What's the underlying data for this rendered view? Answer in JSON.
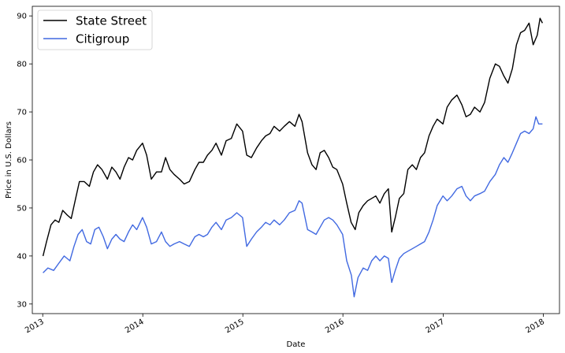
{
  "chart_data": {
    "type": "line",
    "xlabel": "Date",
    "ylabel": "Price in U.S. Dollars",
    "xlim": [
      "2012-11-24",
      "2018-03-01"
    ],
    "ylim": [
      28,
      92
    ],
    "x_ticks": [
      {
        "date": "2013-01-01",
        "label": "2013"
      },
      {
        "date": "2014-01-01",
        "label": "2014"
      },
      {
        "date": "2015-01-01",
        "label": "2015"
      },
      {
        "date": "2016-01-01",
        "label": "2016"
      },
      {
        "date": "2017-01-01",
        "label": "2017"
      },
      {
        "date": "2018-01-01",
        "label": "2018"
      }
    ],
    "y_ticks": [
      30,
      40,
      50,
      60,
      70,
      80,
      90
    ],
    "grid": false,
    "legend_position": "top-left",
    "series": [
      {
        "name": "State Street",
        "color": "#000000",
        "points": [
          [
            "2013-01-02",
            40.0
          ],
          [
            "2013-01-15",
            43.0
          ],
          [
            "2013-01-31",
            46.5
          ],
          [
            "2013-02-15",
            47.5
          ],
          [
            "2013-03-01",
            47.0
          ],
          [
            "2013-03-15",
            49.5
          ],
          [
            "2013-04-01",
            48.5
          ],
          [
            "2013-04-15",
            47.8
          ],
          [
            "2013-05-01",
            52.0
          ],
          [
            "2013-05-15",
            55.5
          ],
          [
            "2013-06-01",
            55.5
          ],
          [
            "2013-06-20",
            54.5
          ],
          [
            "2013-07-05",
            57.5
          ],
          [
            "2013-07-20",
            59.0
          ],
          [
            "2013-08-05",
            58.0
          ],
          [
            "2013-08-25",
            56.0
          ],
          [
            "2013-09-10",
            58.5
          ],
          [
            "2013-09-25",
            57.5
          ],
          [
            "2013-10-10",
            56.0
          ],
          [
            "2013-10-25",
            58.5
          ],
          [
            "2013-11-10",
            60.5
          ],
          [
            "2013-11-25",
            60.0
          ],
          [
            "2013-12-10",
            62.0
          ],
          [
            "2013-12-31",
            63.5
          ],
          [
            "2014-01-15",
            61.0
          ],
          [
            "2014-02-01",
            56.0
          ],
          [
            "2014-02-20",
            57.5
          ],
          [
            "2014-03-10",
            57.5
          ],
          [
            "2014-03-25",
            60.5
          ],
          [
            "2014-04-10",
            58.0
          ],
          [
            "2014-04-25",
            57.0
          ],
          [
            "2014-05-15",
            56.0
          ],
          [
            "2014-06-01",
            55.0
          ],
          [
            "2014-06-20",
            55.5
          ],
          [
            "2014-07-10",
            58.0
          ],
          [
            "2014-07-25",
            59.5
          ],
          [
            "2014-08-10",
            59.5
          ],
          [
            "2014-08-25",
            61.0
          ],
          [
            "2014-09-10",
            62.0
          ],
          [
            "2014-09-25",
            63.5
          ],
          [
            "2014-10-15",
            61.0
          ],
          [
            "2014-11-01",
            64.0
          ],
          [
            "2014-11-20",
            64.5
          ],
          [
            "2014-12-10",
            67.5
          ],
          [
            "2014-12-31",
            66.0
          ],
          [
            "2015-01-15",
            61.0
          ],
          [
            "2015-02-01",
            60.5
          ],
          [
            "2015-02-20",
            62.5
          ],
          [
            "2015-03-10",
            64.0
          ],
          [
            "2015-03-25",
            65.0
          ],
          [
            "2015-04-10",
            65.5
          ],
          [
            "2015-04-25",
            67.0
          ],
          [
            "2015-05-15",
            66.0
          ],
          [
            "2015-06-01",
            67.0
          ],
          [
            "2015-06-20",
            68.0
          ],
          [
            "2015-07-10",
            67.0
          ],
          [
            "2015-07-25",
            69.5
          ],
          [
            "2015-08-05",
            68.0
          ],
          [
            "2015-08-25",
            61.5
          ],
          [
            "2015-09-10",
            59.0
          ],
          [
            "2015-09-25",
            58.0
          ],
          [
            "2015-10-10",
            61.5
          ],
          [
            "2015-10-25",
            62.0
          ],
          [
            "2015-11-10",
            60.5
          ],
          [
            "2015-11-25",
            58.5
          ],
          [
            "2015-12-10",
            58.0
          ],
          [
            "2015-12-31",
            55.0
          ],
          [
            "2016-01-15",
            51.0
          ],
          [
            "2016-01-31",
            47.0
          ],
          [
            "2016-02-15",
            45.5
          ],
          [
            "2016-02-28",
            49.0
          ],
          [
            "2016-03-15",
            50.5
          ],
          [
            "2016-03-31",
            51.5
          ],
          [
            "2016-04-15",
            52.0
          ],
          [
            "2016-04-30",
            52.5
          ],
          [
            "2016-05-15",
            51.0
          ],
          [
            "2016-05-31",
            53.0
          ],
          [
            "2016-06-15",
            54.0
          ],
          [
            "2016-06-27",
            45.0
          ],
          [
            "2016-07-10",
            48.0
          ],
          [
            "2016-07-25",
            52.0
          ],
          [
            "2016-08-10",
            53.0
          ],
          [
            "2016-08-25",
            58.0
          ],
          [
            "2016-09-10",
            59.0
          ],
          [
            "2016-09-25",
            58.0
          ],
          [
            "2016-10-10",
            60.5
          ],
          [
            "2016-10-25",
            61.5
          ],
          [
            "2016-11-10",
            65.0
          ],
          [
            "2016-11-25",
            67.0
          ],
          [
            "2016-12-10",
            68.5
          ],
          [
            "2016-12-31",
            67.5
          ],
          [
            "2017-01-15",
            71.0
          ],
          [
            "2017-02-01",
            72.5
          ],
          [
            "2017-02-20",
            73.5
          ],
          [
            "2017-03-10",
            71.5
          ],
          [
            "2017-03-25",
            69.0
          ],
          [
            "2017-04-10",
            69.5
          ],
          [
            "2017-04-25",
            71.0
          ],
          [
            "2017-05-15",
            70.0
          ],
          [
            "2017-06-01",
            72.0
          ],
          [
            "2017-06-20",
            77.0
          ],
          [
            "2017-07-10",
            80.0
          ],
          [
            "2017-07-25",
            79.5
          ],
          [
            "2017-08-10",
            77.5
          ],
          [
            "2017-08-25",
            76.0
          ],
          [
            "2017-09-10",
            79.0
          ],
          [
            "2017-09-25",
            84.0
          ],
          [
            "2017-10-10",
            86.5
          ],
          [
            "2017-10-25",
            87.0
          ],
          [
            "2017-11-10",
            88.5
          ],
          [
            "2017-11-25",
            84.0
          ],
          [
            "2017-12-10",
            86.0
          ],
          [
            "2017-12-20",
            89.5
          ],
          [
            "2017-12-29",
            88.5
          ]
        ]
      },
      {
        "name": "Citigroup",
        "color": "#4169e1",
        "points": [
          [
            "2013-01-02",
            36.5
          ],
          [
            "2013-01-20",
            37.5
          ],
          [
            "2013-02-10",
            37.0
          ],
          [
            "2013-03-01",
            38.5
          ],
          [
            "2013-03-20",
            40.0
          ],
          [
            "2013-04-10",
            39.0
          ],
          [
            "2013-04-25",
            42.0
          ],
          [
            "2013-05-10",
            44.5
          ],
          [
            "2013-05-25",
            45.5
          ],
          [
            "2013-06-10",
            43.0
          ],
          [
            "2013-06-25",
            42.5
          ],
          [
            "2013-07-10",
            45.5
          ],
          [
            "2013-07-25",
            46.0
          ],
          [
            "2013-08-10",
            44.0
          ],
          [
            "2013-08-25",
            41.5
          ],
          [
            "2013-09-10",
            43.5
          ],
          [
            "2013-09-25",
            44.5
          ],
          [
            "2013-10-10",
            43.5
          ],
          [
            "2013-10-25",
            43.0
          ],
          [
            "2013-11-10",
            45.0
          ],
          [
            "2013-11-25",
            46.5
          ],
          [
            "2013-12-10",
            45.5
          ],
          [
            "2013-12-31",
            48.0
          ],
          [
            "2014-01-15",
            46.0
          ],
          [
            "2014-02-01",
            42.5
          ],
          [
            "2014-02-20",
            43.0
          ],
          [
            "2014-03-10",
            45.0
          ],
          [
            "2014-03-25",
            43.0
          ],
          [
            "2014-04-10",
            42.0
          ],
          [
            "2014-04-25",
            42.5
          ],
          [
            "2014-05-15",
            43.0
          ],
          [
            "2014-06-01",
            42.5
          ],
          [
            "2014-06-20",
            42.0
          ],
          [
            "2014-07-10",
            44.0
          ],
          [
            "2014-07-25",
            44.5
          ],
          [
            "2014-08-10",
            44.0
          ],
          [
            "2014-08-25",
            44.5
          ],
          [
            "2014-09-10",
            46.0
          ],
          [
            "2014-09-25",
            47.0
          ],
          [
            "2014-10-15",
            45.5
          ],
          [
            "2014-11-01",
            47.5
          ],
          [
            "2014-11-20",
            48.0
          ],
          [
            "2014-12-10",
            49.0
          ],
          [
            "2014-12-31",
            48.0
          ],
          [
            "2015-01-15",
            42.0
          ],
          [
            "2015-02-01",
            43.5
          ],
          [
            "2015-02-20",
            45.0
          ],
          [
            "2015-03-10",
            46.0
          ],
          [
            "2015-03-25",
            47.0
          ],
          [
            "2015-04-10",
            46.5
          ],
          [
            "2015-04-25",
            47.5
          ],
          [
            "2015-05-15",
            46.5
          ],
          [
            "2015-06-01",
            47.5
          ],
          [
            "2015-06-20",
            49.0
          ],
          [
            "2015-07-10",
            49.5
          ],
          [
            "2015-07-25",
            51.5
          ],
          [
            "2015-08-05",
            51.0
          ],
          [
            "2015-08-25",
            45.5
          ],
          [
            "2015-09-10",
            45.0
          ],
          [
            "2015-09-25",
            44.5
          ],
          [
            "2015-10-10",
            46.0
          ],
          [
            "2015-10-25",
            47.5
          ],
          [
            "2015-11-10",
            48.0
          ],
          [
            "2015-11-25",
            47.5
          ],
          [
            "2015-12-10",
            46.5
          ],
          [
            "2015-12-31",
            44.5
          ],
          [
            "2016-01-15",
            39.0
          ],
          [
            "2016-02-01",
            36.0
          ],
          [
            "2016-02-11",
            31.5
          ],
          [
            "2016-02-25",
            35.5
          ],
          [
            "2016-03-15",
            37.5
          ],
          [
            "2016-03-31",
            37.0
          ],
          [
            "2016-04-15",
            39.0
          ],
          [
            "2016-04-30",
            40.0
          ],
          [
            "2016-05-15",
            39.0
          ],
          [
            "2016-05-31",
            40.0
          ],
          [
            "2016-06-15",
            39.5
          ],
          [
            "2016-06-27",
            34.5
          ],
          [
            "2016-07-10",
            37.0
          ],
          [
            "2016-07-25",
            39.5
          ],
          [
            "2016-08-10",
            40.5
          ],
          [
            "2016-08-25",
            41.0
          ],
          [
            "2016-09-10",
            41.5
          ],
          [
            "2016-09-25",
            42.0
          ],
          [
            "2016-10-10",
            42.5
          ],
          [
            "2016-10-25",
            43.0
          ],
          [
            "2016-11-10",
            45.0
          ],
          [
            "2016-11-25",
            47.5
          ],
          [
            "2016-12-10",
            50.5
          ],
          [
            "2016-12-31",
            52.5
          ],
          [
            "2017-01-15",
            51.5
          ],
          [
            "2017-02-01",
            52.5
          ],
          [
            "2017-02-20",
            54.0
          ],
          [
            "2017-03-10",
            54.5
          ],
          [
            "2017-03-25",
            52.5
          ],
          [
            "2017-04-10",
            51.5
          ],
          [
            "2017-04-25",
            52.5
          ],
          [
            "2017-05-15",
            53.0
          ],
          [
            "2017-06-01",
            53.5
          ],
          [
            "2017-06-20",
            55.5
          ],
          [
            "2017-07-10",
            57.0
          ],
          [
            "2017-07-25",
            59.0
          ],
          [
            "2017-08-10",
            60.5
          ],
          [
            "2017-08-25",
            59.5
          ],
          [
            "2017-09-10",
            61.5
          ],
          [
            "2017-09-25",
            63.5
          ],
          [
            "2017-10-10",
            65.5
          ],
          [
            "2017-10-25",
            66.0
          ],
          [
            "2017-11-10",
            65.5
          ],
          [
            "2017-11-25",
            66.5
          ],
          [
            "2017-12-05",
            69.0
          ],
          [
            "2017-12-15",
            67.5
          ],
          [
            "2017-12-29",
            67.5
          ]
        ]
      }
    ]
  }
}
